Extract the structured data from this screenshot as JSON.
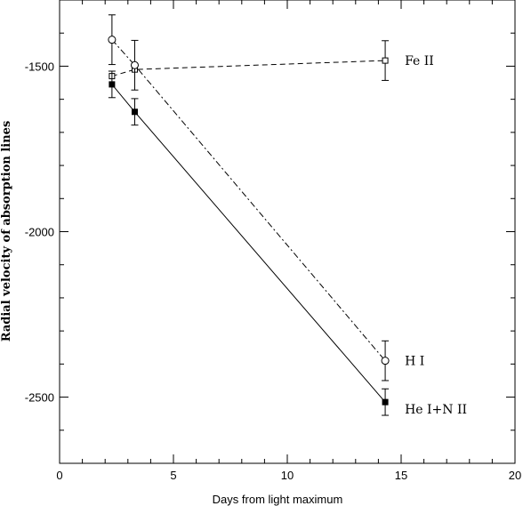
{
  "chart_data": {
    "type": "line",
    "xlabel": "Days from light maximum",
    "ylabel": "Radial velocity of absorption lines",
    "xlim": [
      0,
      20
    ],
    "ylim": [
      -2700,
      -1300
    ],
    "x_ticks": [
      0,
      5,
      10,
      15,
      20
    ],
    "y_ticks": [
      -2500,
      -2000,
      -1500
    ],
    "grid": false,
    "legend": "none (series labeled at right end of lines)",
    "series": [
      {
        "name": "Fe II",
        "line_style": "dashed",
        "marker": "open-square",
        "points": [
          {
            "x": 2.3,
            "y": -1530,
            "err": 0
          },
          {
            "x": 3.3,
            "y": -1510,
            "err": 0
          },
          {
            "x": 14.3,
            "y": -1483,
            "err": 60
          }
        ]
      },
      {
        "name": "H I",
        "line_style": "dash-dot",
        "marker": "open-circle",
        "points": [
          {
            "x": 2.3,
            "y": -1420,
            "err": 75
          },
          {
            "x": 3.3,
            "y": -1497,
            "err": 75
          },
          {
            "x": 14.3,
            "y": -2390,
            "err": 60
          }
        ]
      },
      {
        "name": "He I+N II",
        "line_style": "solid",
        "marker": "filled-square",
        "points": [
          {
            "x": 2.3,
            "y": -1555,
            "err": 40
          },
          {
            "x": 3.3,
            "y": -1638,
            "err": 40
          },
          {
            "x": 14.3,
            "y": -2515,
            "err": 40
          }
        ]
      }
    ]
  }
}
